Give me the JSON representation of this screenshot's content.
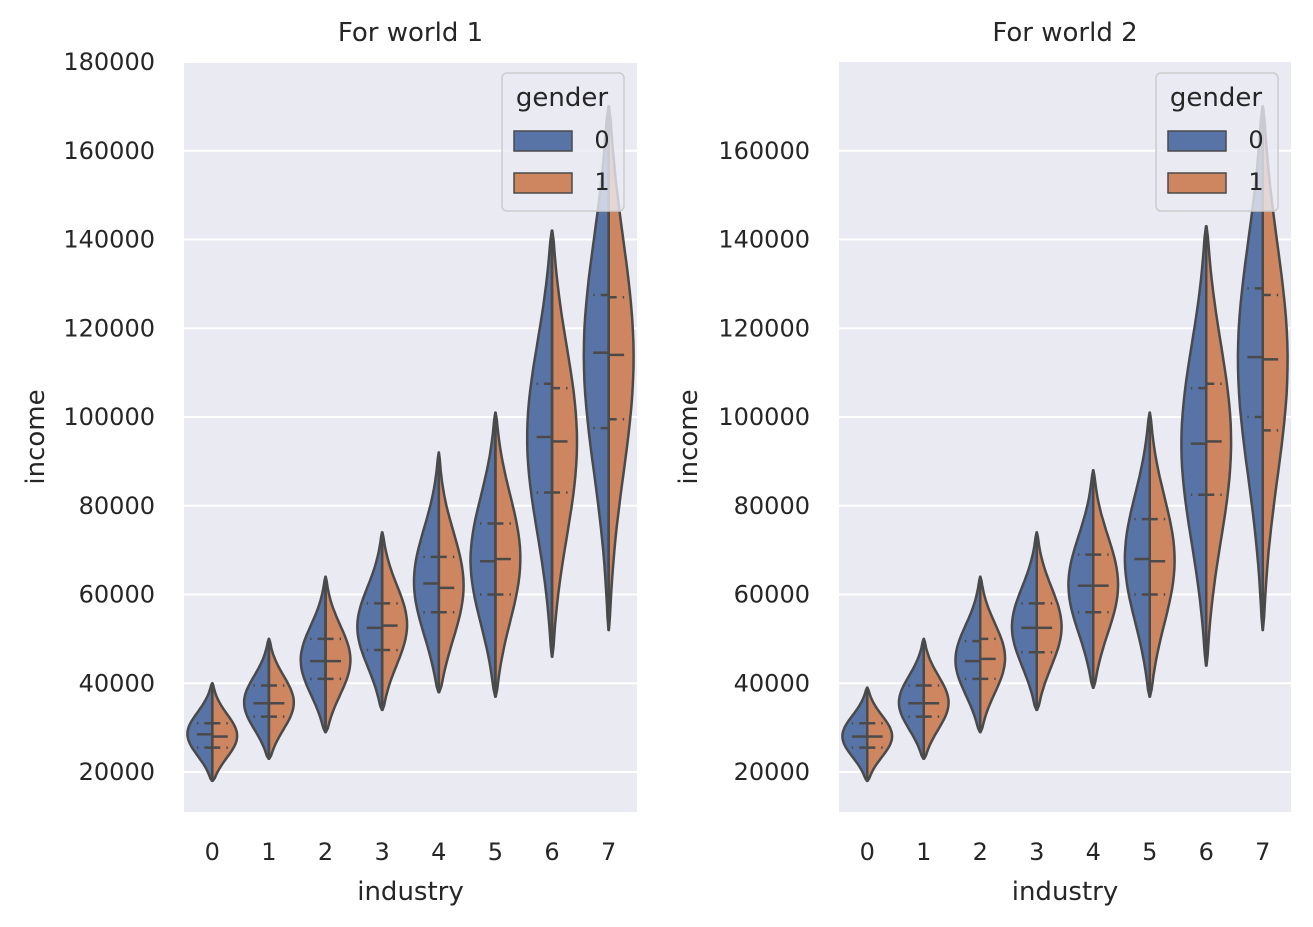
{
  "colors": {
    "panel_bg": "#EAEAF2",
    "grid": "#FFFFFF",
    "gender_0": "#5874A6",
    "gender_1": "#CE8660",
    "outline": "#4A4A4A"
  },
  "chart_data": [
    {
      "type": "violin",
      "title": "For world 1",
      "xlabel": "industry",
      "ylabel": "income",
      "categories": [
        "0",
        "1",
        "2",
        "3",
        "4",
        "5",
        "6",
        "7"
      ],
      "ylim": [
        11000,
        180000
      ],
      "yticks": [
        20000,
        40000,
        60000,
        80000,
        100000,
        120000,
        140000,
        160000,
        180000
      ],
      "grid": true,
      "legend": {
        "title": "gender",
        "placement": "top-right",
        "entries": [
          "0",
          "1"
        ]
      },
      "series": [
        {
          "name": "0",
          "min": [
            18000,
            23000,
            29000,
            34000,
            38000,
            37000,
            46000,
            52000
          ],
          "max": [
            40000,
            50000,
            64000,
            74000,
            92000,
            101000,
            142000,
            170000
          ],
          "q1": [
            25500,
            32500,
            41000,
            47500,
            56000,
            60000,
            83000,
            97500
          ],
          "median": [
            28500,
            35500,
            45000,
            52500,
            62500,
            67500,
            95500,
            114500
          ],
          "q3": [
            31000,
            39500,
            50000,
            58000,
            68500,
            76000,
            107500,
            127500
          ]
        },
        {
          "name": "1",
          "min": [
            18000,
            23000,
            29000,
            34000,
            38000,
            37000,
            46000,
            52000
          ],
          "max": [
            40000,
            50000,
            64000,
            74000,
            92000,
            101000,
            142000,
            170000
          ],
          "q1": [
            25500,
            32500,
            41000,
            47500,
            56000,
            60000,
            83000,
            99500
          ],
          "median": [
            28000,
            35500,
            45000,
            53000,
            61500,
            68000,
            94500,
            114000
          ],
          "q3": [
            31000,
            39500,
            50000,
            58000,
            68500,
            76000,
            106500,
            127000
          ]
        }
      ]
    },
    {
      "type": "violin",
      "title": "For world 2",
      "xlabel": "industry",
      "ylabel": "income",
      "categories": [
        "0",
        "1",
        "2",
        "3",
        "4",
        "5",
        "6",
        "7"
      ],
      "ylim": [
        11000,
        180000
      ],
      "yticks": [
        20000,
        40000,
        60000,
        80000,
        100000,
        120000,
        140000,
        160000
      ],
      "grid": true,
      "legend": {
        "title": "gender",
        "placement": "top-right",
        "entries": [
          "0",
          "1"
        ]
      },
      "series": [
        {
          "name": "0",
          "min": [
            18000,
            23000,
            29000,
            34000,
            39000,
            37000,
            44000,
            52000
          ],
          "max": [
            39000,
            50000,
            64000,
            74000,
            88000,
            101000,
            143000,
            170000
          ],
          "q1": [
            25500,
            32500,
            41000,
            47000,
            56000,
            60000,
            82500,
            100000
          ],
          "median": [
            28000,
            35500,
            45000,
            52500,
            62000,
            68000,
            94000,
            113500
          ],
          "q3": [
            31000,
            39500,
            49500,
            58000,
            69000,
            77000,
            106500,
            129000
          ]
        },
        {
          "name": "1",
          "min": [
            18000,
            23000,
            29000,
            34000,
            39000,
            37000,
            44000,
            52000
          ],
          "max": [
            39000,
            50000,
            64000,
            74000,
            88000,
            101000,
            143000,
            170000
          ],
          "q1": [
            25500,
            32500,
            41000,
            47000,
            56000,
            60000,
            82500,
            97000
          ],
          "median": [
            28000,
            35500,
            45500,
            52500,
            62000,
            67500,
            94500,
            113000
          ],
          "q3": [
            31000,
            39500,
            50000,
            58000,
            69000,
            77000,
            107500,
            127500
          ]
        }
      ]
    }
  ]
}
